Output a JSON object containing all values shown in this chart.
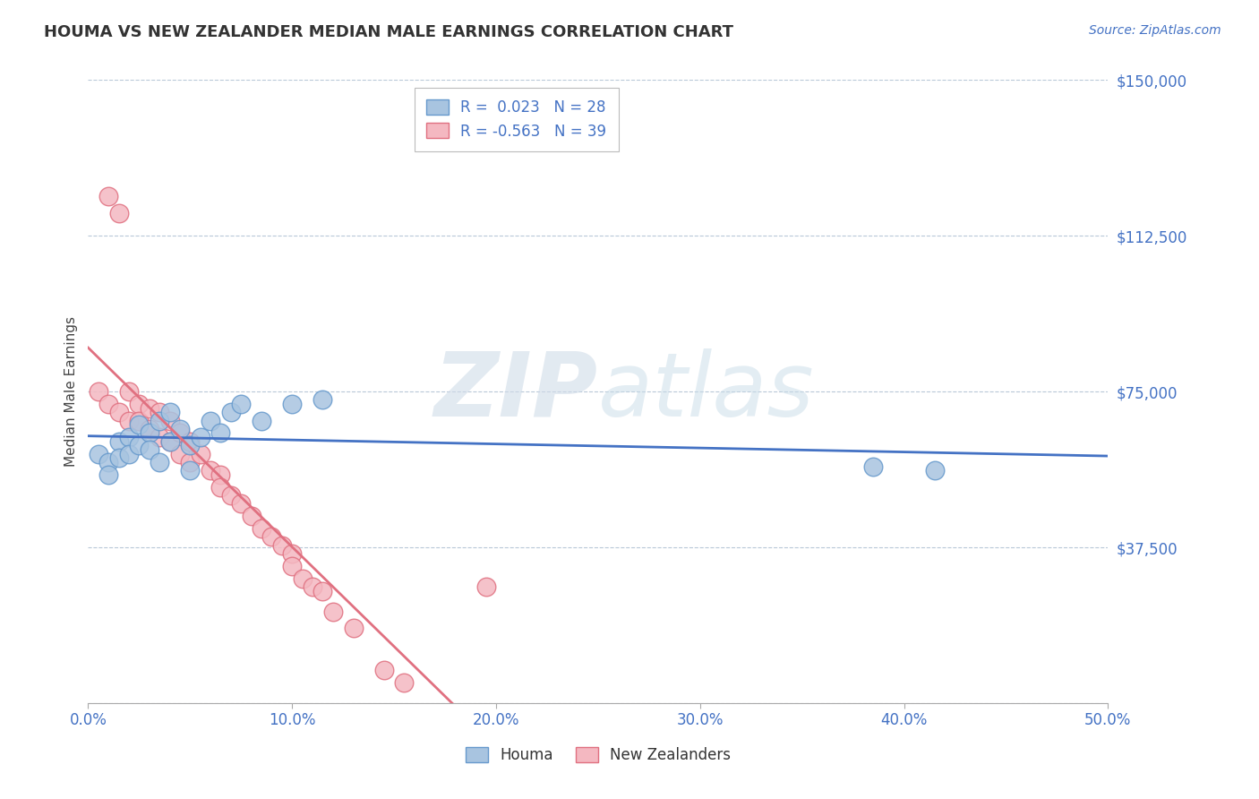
{
  "title": "HOUMA VS NEW ZEALANDER MEDIAN MALE EARNINGS CORRELATION CHART",
  "source_text": "Source: ZipAtlas.com",
  "ylabel": "Median Male Earnings",
  "xlim": [
    0.0,
    0.5
  ],
  "ylim": [
    0,
    150000
  ],
  "yticks": [
    0,
    37500,
    75000,
    112500,
    150000
  ],
  "ytick_labels": [
    "",
    "$37,500",
    "$75,000",
    "$112,500",
    "$150,000"
  ],
  "xticks": [
    0.0,
    0.1,
    0.2,
    0.3,
    0.4,
    0.5
  ],
  "xtick_labels": [
    "0.0%",
    "10.0%",
    "20.0%",
    "30.0%",
    "40.0%",
    "50.0%"
  ],
  "houma_color": "#a8c4e0",
  "houma_edge_color": "#6699cc",
  "nz_color": "#f4b8c1",
  "nz_edge_color": "#e07080",
  "houma_R": 0.023,
  "houma_N": 28,
  "nz_R": -0.563,
  "nz_N": 39,
  "houma_line_color": "#4472c4",
  "nz_line_color": "#e07080",
  "title_color": "#333333",
  "tick_label_color": "#4472c4",
  "grid_color": "#b8c8d8",
  "watermark_color": "#d0dce8",
  "legend_label_houma": "Houma",
  "legend_label_nz": "New Zealanders",
  "houma_x": [
    0.005,
    0.01,
    0.01,
    0.015,
    0.015,
    0.02,
    0.02,
    0.025,
    0.025,
    0.03,
    0.03,
    0.035,
    0.035,
    0.04,
    0.04,
    0.045,
    0.05,
    0.05,
    0.055,
    0.06,
    0.065,
    0.07,
    0.075,
    0.085,
    0.1,
    0.115,
    0.385,
    0.415
  ],
  "houma_y": [
    60000,
    58000,
    55000,
    63000,
    59000,
    64000,
    60000,
    67000,
    62000,
    65000,
    61000,
    68000,
    58000,
    70000,
    63000,
    66000,
    62000,
    56000,
    64000,
    68000,
    65000,
    70000,
    72000,
    68000,
    72000,
    73000,
    57000,
    56000
  ],
  "nz_x": [
    0.005,
    0.01,
    0.015,
    0.02,
    0.02,
    0.025,
    0.025,
    0.03,
    0.03,
    0.035,
    0.035,
    0.04,
    0.04,
    0.045,
    0.045,
    0.05,
    0.05,
    0.055,
    0.06,
    0.065,
    0.065,
    0.07,
    0.075,
    0.08,
    0.085,
    0.09,
    0.095,
    0.1,
    0.1,
    0.105,
    0.11,
    0.115,
    0.12,
    0.13,
    0.145,
    0.155,
    0.195,
    0.01,
    0.015
  ],
  "nz_y": [
    75000,
    72000,
    70000,
    75000,
    68000,
    72000,
    68000,
    71000,
    66000,
    70000,
    64000,
    68000,
    63000,
    65000,
    60000,
    63000,
    58000,
    60000,
    56000,
    55000,
    52000,
    50000,
    48000,
    45000,
    42000,
    40000,
    38000,
    36000,
    33000,
    30000,
    28000,
    27000,
    22000,
    18000,
    8000,
    5000,
    28000,
    122000,
    118000
  ]
}
